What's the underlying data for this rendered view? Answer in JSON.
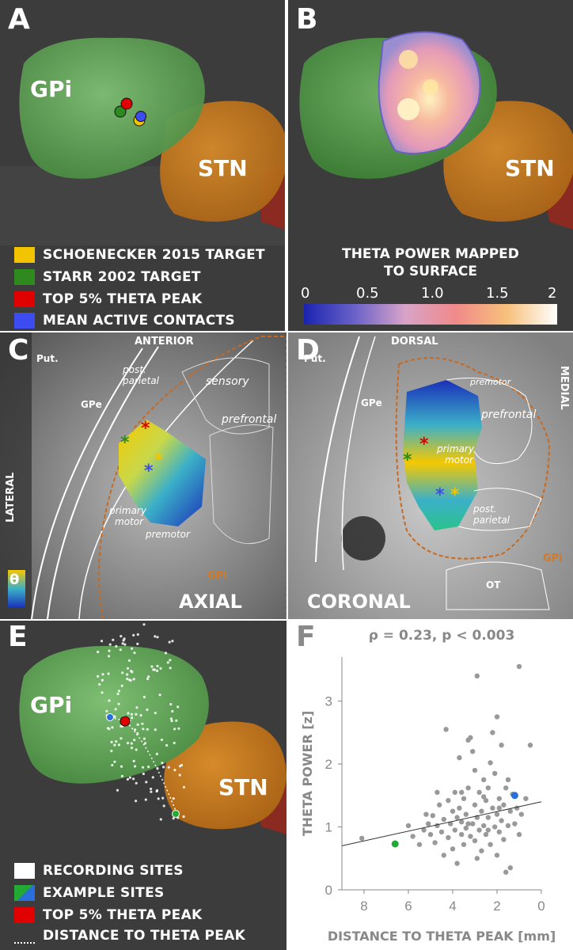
{
  "panels": {
    "A": {
      "letter": "A",
      "gpi": "GPi",
      "stn": "STN",
      "legend": [
        {
          "label": "SCHOENECKER 2015 TARGET",
          "color": "#f2c400"
        },
        {
          "label": "STARR 2002 TARGET",
          "color": "#2e8a1e"
        },
        {
          "label": "TOP 5% THETA PEAK",
          "color": "#e00000"
        },
        {
          "label": "MEAN ACTIVE CONTACTS",
          "color": "#3d4cf0"
        }
      ]
    },
    "B": {
      "letter": "B",
      "stn": "STN",
      "colorbar_title": "THETA POWER MAPPED TO SURFACE",
      "colorbar_title_line1": "THETA POWER MAPPED",
      "colorbar_title_line2": "TO SURFACE",
      "ticks": [
        "0",
        "0.5",
        "1.0",
        "1.5",
        "2"
      ]
    },
    "C": {
      "letter": "C",
      "anterior": "ANTERIOR",
      "put": "Put.",
      "gpe": "GPe",
      "lateral": "LATERAL",
      "post_parietal_1": "post.",
      "post_parietal_2": "parietal",
      "sensory": "sensory",
      "prefrontal": "prefrontal",
      "primary_motor_1": "primary",
      "primary_motor_2": "motor",
      "premotor": "premotor",
      "gpi": "GPi",
      "theta": "θ",
      "view": "AXIAL"
    },
    "D": {
      "letter": "D",
      "dorsal": "DORSAL",
      "put": "Put.",
      "gpe": "GPe",
      "medial": "MEDIAL",
      "premotor": "premotor",
      "prefrontal": "prefrontal",
      "primary_motor_1": "primary",
      "primary_motor_2": "motor",
      "post_parietal_1": "post.",
      "post_parietal_2": "parietal",
      "gpi": "GPi",
      "ot": "OT",
      "view": "CORONAL"
    },
    "E": {
      "letter": "E",
      "gpi": "GPi",
      "stn": "STN",
      "legend": [
        {
          "label": "RECORDING SITES",
          "kind": "white"
        },
        {
          "label": "EXAMPLE SITES",
          "kind": "split"
        },
        {
          "label": "TOP 5% THETA PEAK",
          "kind": "red"
        },
        {
          "label": "DISTANCE TO THETA PEAK",
          "kind": "dotted"
        }
      ]
    },
    "F": {
      "letter": "F"
    }
  },
  "colors": {
    "gpi_fill": "#5e9e55",
    "stn_fill": "#c47a1e",
    "bg_dark": "#3a3a3a",
    "accent_gpi_outline": "#c8691f"
  },
  "chart_data": {
    "type": "scatter",
    "title": "ρ = 0.23, p < 0.003",
    "xlabel": "DISTANCE TO THETA PEAK [mm]",
    "ylabel": "THETA POWER [z]",
    "xlim": [
      9,
      0
    ],
    "ylim": [
      0,
      3.7
    ],
    "xticks": [
      8,
      6,
      4,
      2,
      0
    ],
    "yticks": [
      0,
      1,
      2,
      3
    ],
    "grid": false,
    "trendline": {
      "x": [
        9,
        0
      ],
      "y": [
        0.7,
        1.4
      ]
    },
    "points": [
      [
        8.1,
        0.82
      ],
      [
        6.0,
        1.02
      ],
      [
        5.8,
        0.85
      ],
      [
        5.5,
        0.72
      ],
      [
        5.3,
        0.95
      ],
      [
        5.1,
        1.05
      ],
      [
        5.0,
        0.88
      ],
      [
        4.9,
        1.18
      ],
      [
        4.8,
        0.75
      ],
      [
        4.7,
        1.02
      ],
      [
        4.6,
        1.35
      ],
      [
        4.5,
        0.92
      ],
      [
        4.4,
        1.12
      ],
      [
        4.3,
        2.55
      ],
      [
        4.2,
        0.83
      ],
      [
        4.2,
        1.42
      ],
      [
        4.1,
        1.05
      ],
      [
        4.0,
        0.65
      ],
      [
        4.0,
        1.25
      ],
      [
        3.9,
        1.55
      ],
      [
        3.9,
        0.95
      ],
      [
        3.8,
        1.15
      ],
      [
        3.8,
        0.42
      ],
      [
        3.7,
        1.3
      ],
      [
        3.7,
        2.1
      ],
      [
        3.6,
        0.88
      ],
      [
        3.6,
        1.08
      ],
      [
        3.5,
        1.45
      ],
      [
        3.5,
        0.72
      ],
      [
        3.4,
        1.2
      ],
      [
        3.4,
        0.98
      ],
      [
        3.3,
        2.38
      ],
      [
        3.3,
        1.62
      ],
      [
        3.2,
        0.85
      ],
      [
        3.2,
        2.42
      ],
      [
        3.1,
        1.05
      ],
      [
        3.1,
        2.2
      ],
      [
        3.0,
        1.35
      ],
      [
        3.0,
        0.78
      ],
      [
        3.0,
        1.9
      ],
      [
        2.9,
        1.15
      ],
      [
        2.9,
        3.4
      ],
      [
        2.8,
        0.95
      ],
      [
        2.8,
        1.55
      ],
      [
        2.7,
        1.25
      ],
      [
        2.7,
        0.62
      ],
      [
        2.6,
        1.02
      ],
      [
        2.6,
        1.75
      ],
      [
        2.5,
        1.42
      ],
      [
        2.5,
        0.88
      ],
      [
        2.4,
        1.15
      ],
      [
        2.4,
        1.62
      ],
      [
        2.3,
        2.02
      ],
      [
        2.3,
        0.72
      ],
      [
        2.2,
        1.3
      ],
      [
        2.2,
        2.5
      ],
      [
        2.1,
        1.0
      ],
      [
        2.1,
        1.85
      ],
      [
        2.0,
        1.2
      ],
      [
        2.0,
        0.55
      ],
      [
        2.0,
        2.75
      ],
      [
        1.9,
        1.45
      ],
      [
        1.9,
        0.92
      ],
      [
        1.8,
        1.1
      ],
      [
        1.8,
        2.3
      ],
      [
        1.7,
        1.35
      ],
      [
        1.7,
        0.8
      ],
      [
        1.6,
        1.62
      ],
      [
        1.6,
        0.28
      ],
      [
        1.5,
        1.02
      ],
      [
        1.5,
        1.75
      ],
      [
        1.4,
        1.25
      ],
      [
        1.4,
        0.35
      ],
      [
        1.3,
        1.52
      ],
      [
        1.2,
        1.05
      ],
      [
        1.1,
        1.3
      ],
      [
        1.0,
        0.88
      ],
      [
        1.0,
        3.55
      ],
      [
        0.9,
        1.2
      ],
      [
        0.7,
        1.45
      ],
      [
        0.5,
        2.3
      ],
      [
        5.2,
        1.2
      ],
      [
        4.4,
        0.55
      ],
      [
        3.6,
        1.55
      ],
      [
        2.9,
        0.5
      ],
      [
        2.4,
        0.95
      ],
      [
        1.9,
        1.3
      ],
      [
        3.3,
        1.05
      ],
      [
        4.7,
        1.55
      ],
      [
        2.6,
        1.48
      ]
    ],
    "highlights": [
      {
        "x": 6.6,
        "y": 0.73,
        "color": "#22aa33"
      },
      {
        "x": 1.2,
        "y": 1.5,
        "color": "#2a6edb"
      }
    ]
  }
}
